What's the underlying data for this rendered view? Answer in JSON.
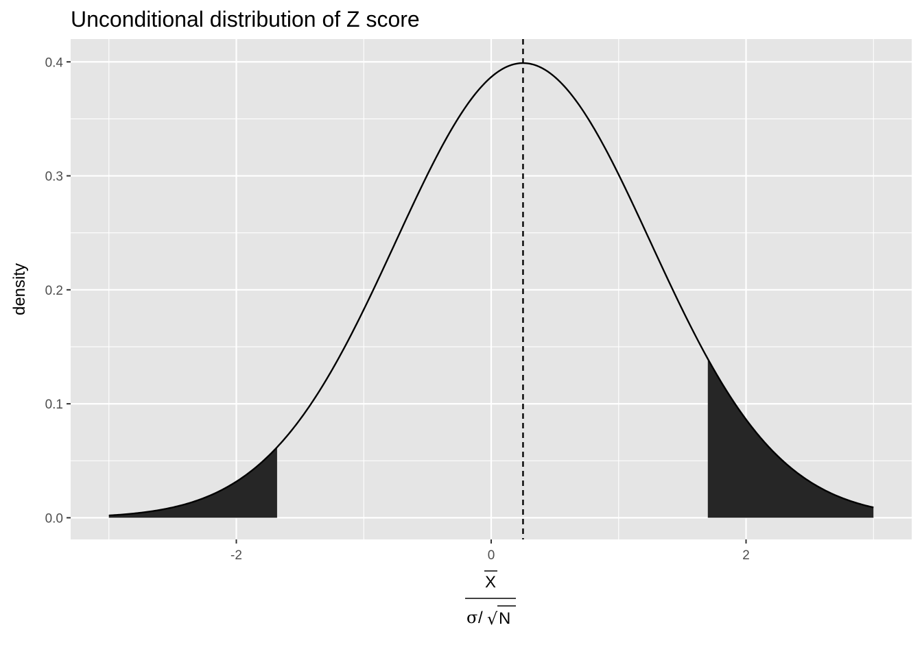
{
  "chart_data": {
    "type": "area",
    "title": "Unconditional distribution of Z score",
    "xlabel": {
      "numerator": "X",
      "denominator_sigma": "σ",
      "denominator_slash": "/",
      "denominator_sqrt": "√",
      "denominator_n": "N"
    },
    "ylabel": "density",
    "xlim": [
      -3.3,
      3.3
    ],
    "ylim": [
      -0.019,
      0.42
    ],
    "x_ticks": [
      -2,
      0,
      2
    ],
    "x_tick_labels": [
      "-2",
      "0",
      "2"
    ],
    "y_ticks": [
      0.0,
      0.1,
      0.2,
      0.3,
      0.4
    ],
    "y_tick_labels": [
      "0.0",
      "0.1",
      "0.2",
      "0.3",
      "0.4"
    ],
    "grid": true,
    "curve": {
      "distribution": "normal",
      "mean": 0.25,
      "sd": 1,
      "x_range": [
        -3,
        3
      ]
    },
    "shaded_regions": [
      {
        "from": -3,
        "to": -1.68,
        "color": "#262626"
      },
      {
        "from": 1.7,
        "to": 3,
        "color": "#262626"
      }
    ],
    "vline": {
      "x": 0.25,
      "style": "dashed"
    },
    "colors": {
      "panel": "#e5e5e5",
      "grid": "#ffffff",
      "curve": "#000000",
      "fill": "#262626"
    }
  }
}
